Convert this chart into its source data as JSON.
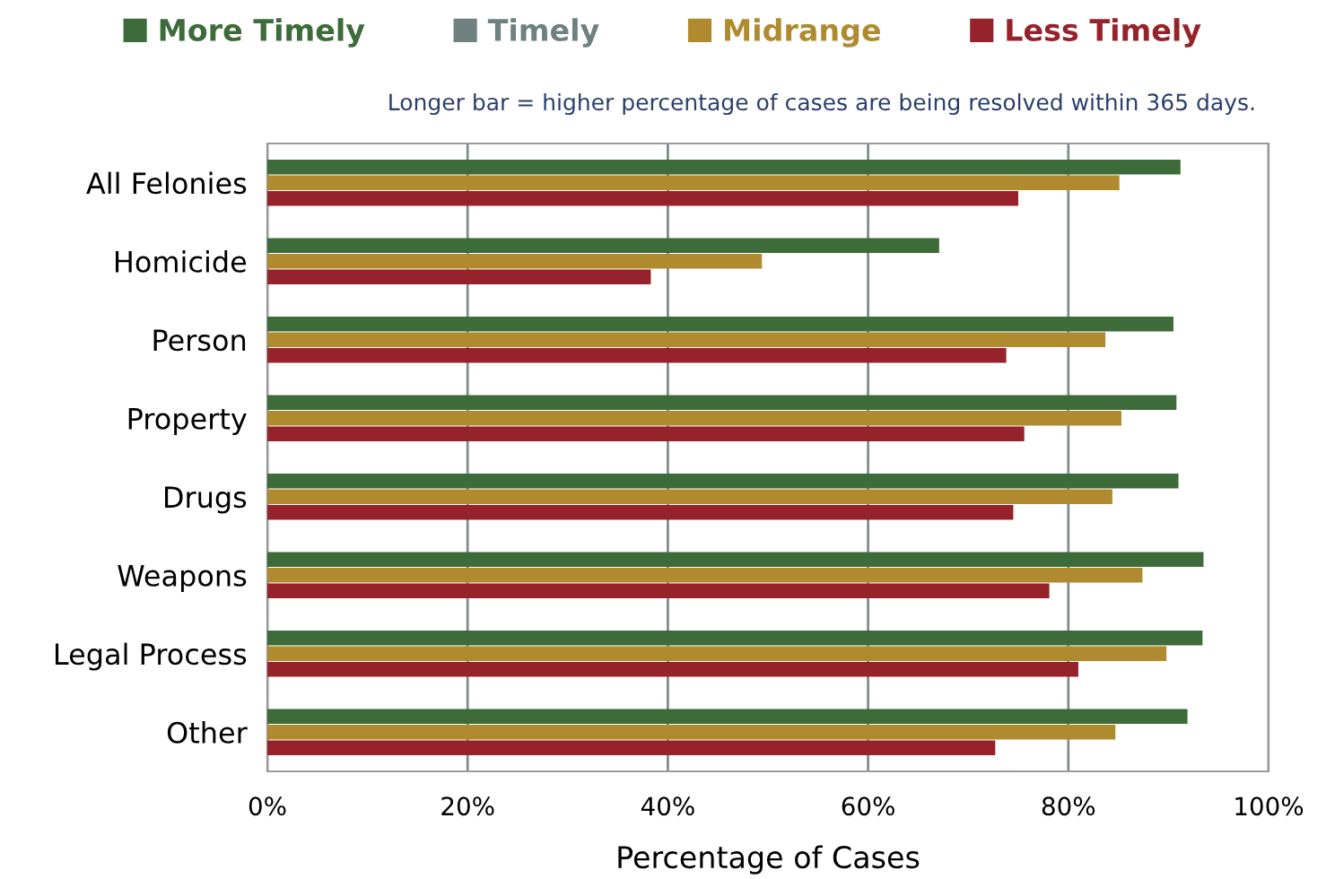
{
  "chart_data": {
    "type": "bar",
    "orientation": "horizontal",
    "subtitle": "Longer bar = higher percentage of cases are being resolved within 365 days.",
    "xlabel": "Percentage of Cases",
    "categories": [
      "All Felonies",
      "Homicide",
      "Person",
      "Property",
      "Drugs",
      "Weapons",
      "Legal Process",
      "Other"
    ],
    "series": [
      {
        "name": "More Timely",
        "color": "#3d6b3a",
        "values": [
          91.2,
          67.1,
          90.5,
          90.8,
          91.0,
          93.5,
          93.4,
          91.9
        ]
      },
      {
        "name": "Timely",
        "color": "#6f8080",
        "values": [
          null,
          null,
          null,
          null,
          null,
          null,
          null,
          null
        ]
      },
      {
        "name": "Midrange",
        "color": "#b08a2e",
        "values": [
          85.1,
          49.4,
          83.7,
          85.3,
          84.4,
          87.4,
          89.8,
          84.7
        ]
      },
      {
        "name": "Less Timely",
        "color": "#96232b",
        "values": [
          75.0,
          38.3,
          73.8,
          75.6,
          74.5,
          78.1,
          81.0,
          72.7
        ]
      }
    ],
    "xlim": [
      0,
      100
    ],
    "xticks": [
      {
        "value": 0,
        "label": "0%"
      },
      {
        "value": 20,
        "label": "20%"
      },
      {
        "value": 40,
        "label": "40%"
      },
      {
        "value": 60,
        "label": "60%"
      },
      {
        "value": 80,
        "label": "80%"
      },
      {
        "value": 100,
        "label": "100%"
      }
    ],
    "grid": "x",
    "legend": "top"
  }
}
